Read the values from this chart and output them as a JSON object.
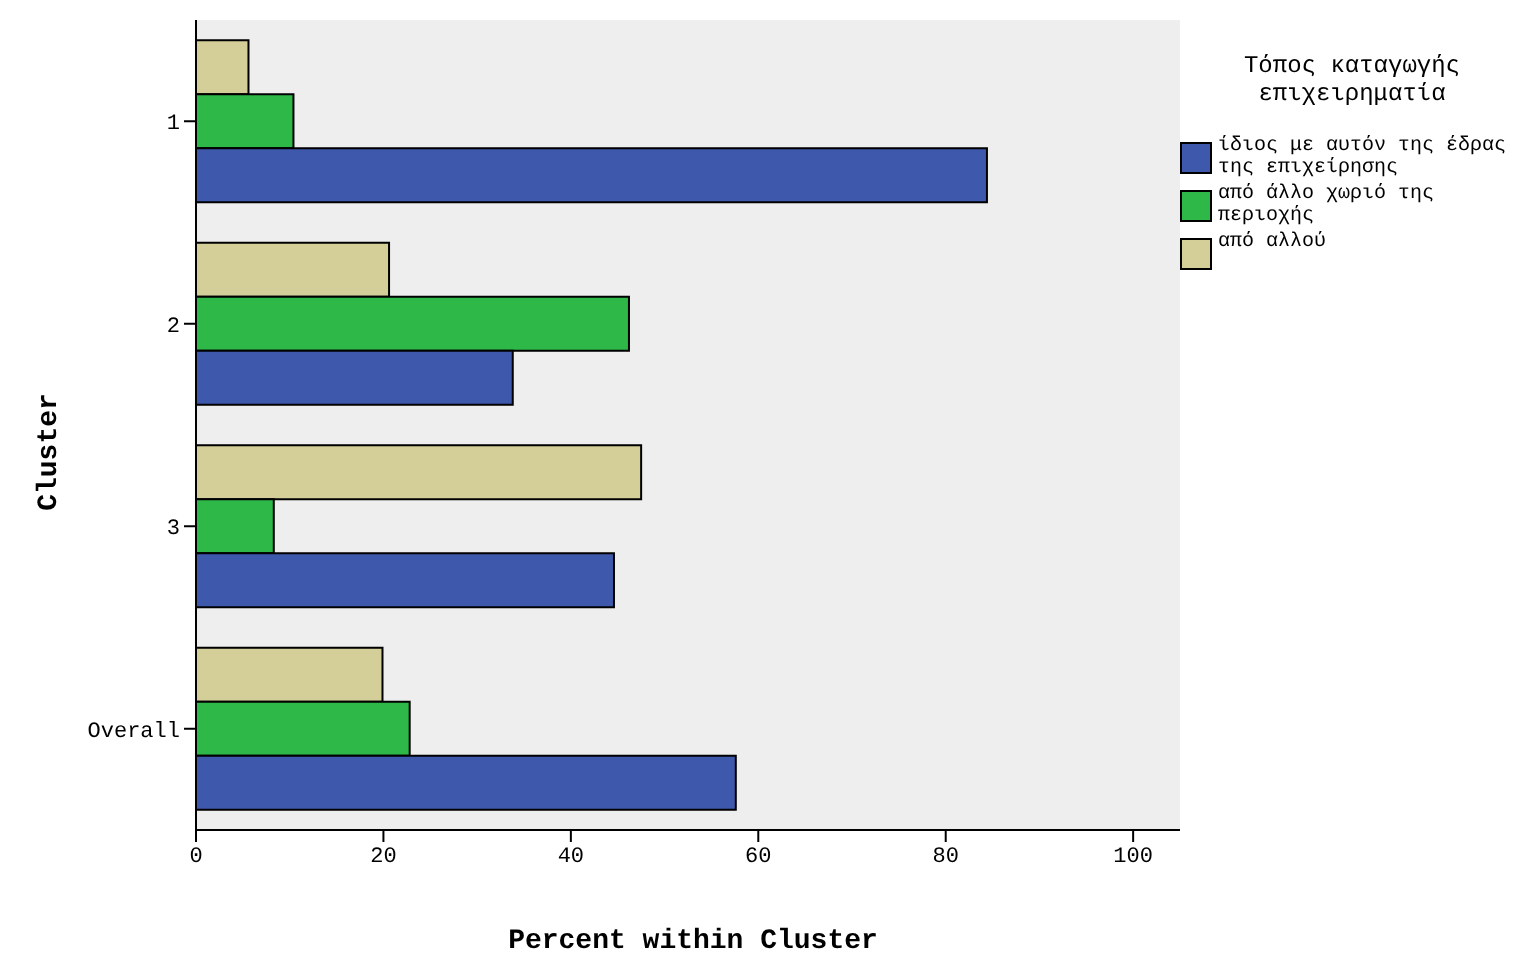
{
  "chart_data": {
    "type": "bar",
    "orientation": "horizontal",
    "xlabel": "Percent within Cluster",
    "ylabel": "Cluster",
    "legend_title": "Τόπος καταγωγής επιχειρηματία",
    "categories": [
      "1",
      "2",
      "3",
      "Overall"
    ],
    "series": [
      {
        "name": "ίδιος με αυτόν της έδρας της επιχείρησης",
        "color": "#3e58ac",
        "values": [
          84.4,
          33.8,
          44.6,
          57.6
        ]
      },
      {
        "name": "από άλλο χωριό της περιοχής",
        "color": "#2eb848",
        "values": [
          10.4,
          46.2,
          8.3,
          22.8
        ]
      },
      {
        "name": "από αλλού",
        "color": "#d4ce99",
        "values": [
          5.6,
          20.6,
          47.5,
          19.9
        ]
      }
    ],
    "xlim": [
      0,
      105
    ],
    "xticks": [
      0,
      20,
      40,
      60,
      80,
      100
    ],
    "grid": false,
    "legend": "top right"
  }
}
